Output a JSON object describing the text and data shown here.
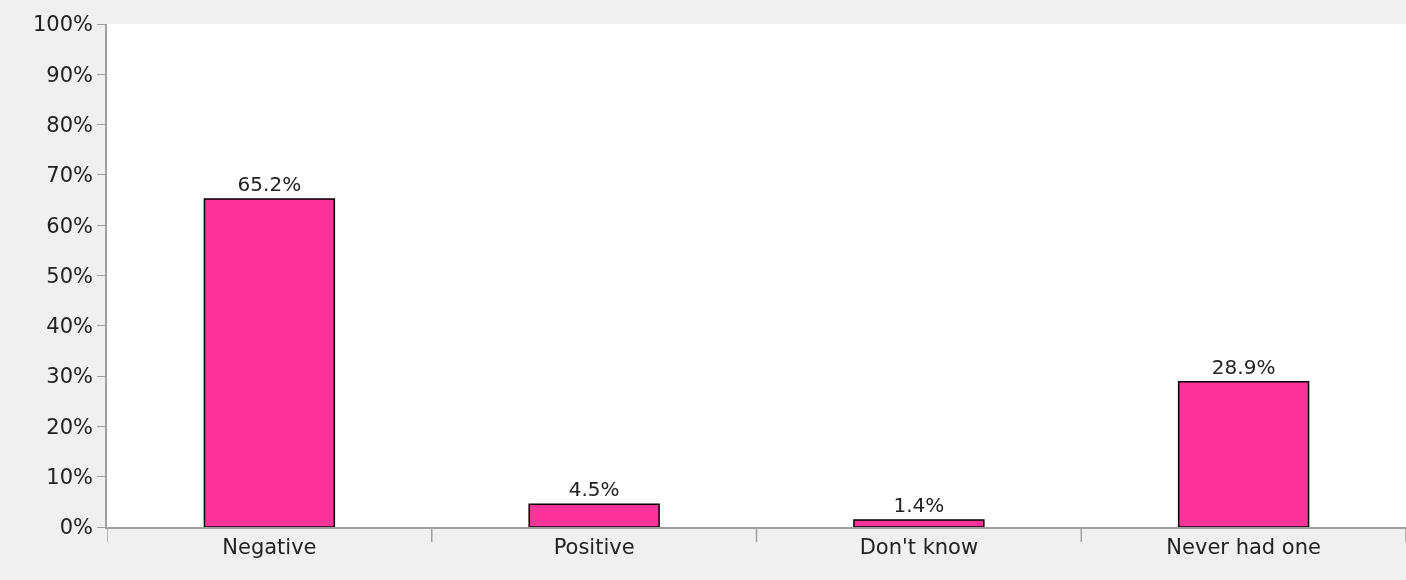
{
  "chart_data": {
    "type": "bar",
    "categories": [
      "Negative",
      "Positive",
      "Don't know",
      "Never had one"
    ],
    "values": [
      65.2,
      4.5,
      1.4,
      28.9
    ],
    "value_labels": [
      "65.2%",
      "4.5%",
      "1.4%",
      "28.9%"
    ],
    "color": "#ff3399",
    "ylim": [
      0,
      100
    ],
    "yticks": [
      {
        "value": 0,
        "label": "0%"
      },
      {
        "value": 10,
        "label": "10%"
      },
      {
        "value": 20,
        "label": "20%"
      },
      {
        "value": 30,
        "label": "30%"
      },
      {
        "value": 40,
        "label": "40%"
      },
      {
        "value": 50,
        "label": "50%"
      },
      {
        "value": 60,
        "label": "60%"
      },
      {
        "value": 70,
        "label": "70%"
      },
      {
        "value": 80,
        "label": "80%"
      },
      {
        "value": 90,
        "label": "90%"
      },
      {
        "value": 100,
        "label": "100%"
      }
    ],
    "grid": false
  }
}
